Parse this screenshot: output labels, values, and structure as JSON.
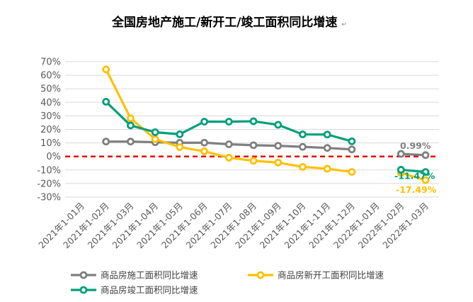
{
  "chart_data": {
    "type": "line",
    "title": "全国房地产施工/新开工/竣工面积同比增速",
    "title_mark": "↵",
    "categories": [
      "2021年1-01月",
      "2021年1-02月",
      "2021年1-03月",
      "2021年1-04月",
      "2021年1-05月",
      "2021年1-06月",
      "2021年1-07月",
      "2021年1-08月",
      "2021年1-09月",
      "2021年1-10月",
      "2021年1-11月",
      "2021年1-12月",
      "2022年1-01月",
      "2022年1-02月",
      "2022年1-03月"
    ],
    "ylim": [
      -30,
      70
    ],
    "yticks": [
      70,
      60,
      50,
      40,
      30,
      20,
      10,
      0,
      -10,
      -20,
      -30
    ],
    "ytick_labels": [
      "70%",
      "60%",
      "50%",
      "40%",
      "30%",
      "20%",
      "10%",
      "0%",
      "-10%",
      "-20%",
      "-30%"
    ],
    "grid": true,
    "zero_line": {
      "value": 0,
      "style": "dashed",
      "color": "#e60000"
    },
    "series": [
      {
        "name": "商品房施工面积同比增速",
        "color": "#7f7f7f",
        "values": [
          null,
          11.0,
          11.0,
          10.5,
          10.1,
          10.2,
          9.0,
          8.3,
          7.9,
          7.1,
          6.3,
          5.2,
          null,
          1.9,
          0.99
        ]
      },
      {
        "name": "商品房新开工面积同比增速",
        "color": "#ffc000",
        "values": [
          null,
          64.3,
          28.2,
          12.8,
          6.9,
          3.8,
          -0.9,
          -3.2,
          -4.5,
          -7.7,
          -9.1,
          -11.4,
          null,
          -12.2,
          -17.49
        ]
      },
      {
        "name": "商品房竣工面积同比增速",
        "color": "#009f7a",
        "values": [
          null,
          40.4,
          22.9,
          17.9,
          16.4,
          25.7,
          25.7,
          26.0,
          23.4,
          16.3,
          16.2,
          11.2,
          null,
          -9.8,
          -11.47
        ]
      }
    ],
    "annotations": [
      {
        "series": 0,
        "index": 14,
        "text": "0.99%",
        "color": "#7f7f7f"
      },
      {
        "series": 2,
        "index": 14,
        "text": "-11.47%",
        "color": "#009f7a"
      },
      {
        "series": 1,
        "index": 14,
        "text": "-17.49%",
        "color": "#ffc000"
      }
    ],
    "legend": {
      "position": "bottom"
    }
  }
}
